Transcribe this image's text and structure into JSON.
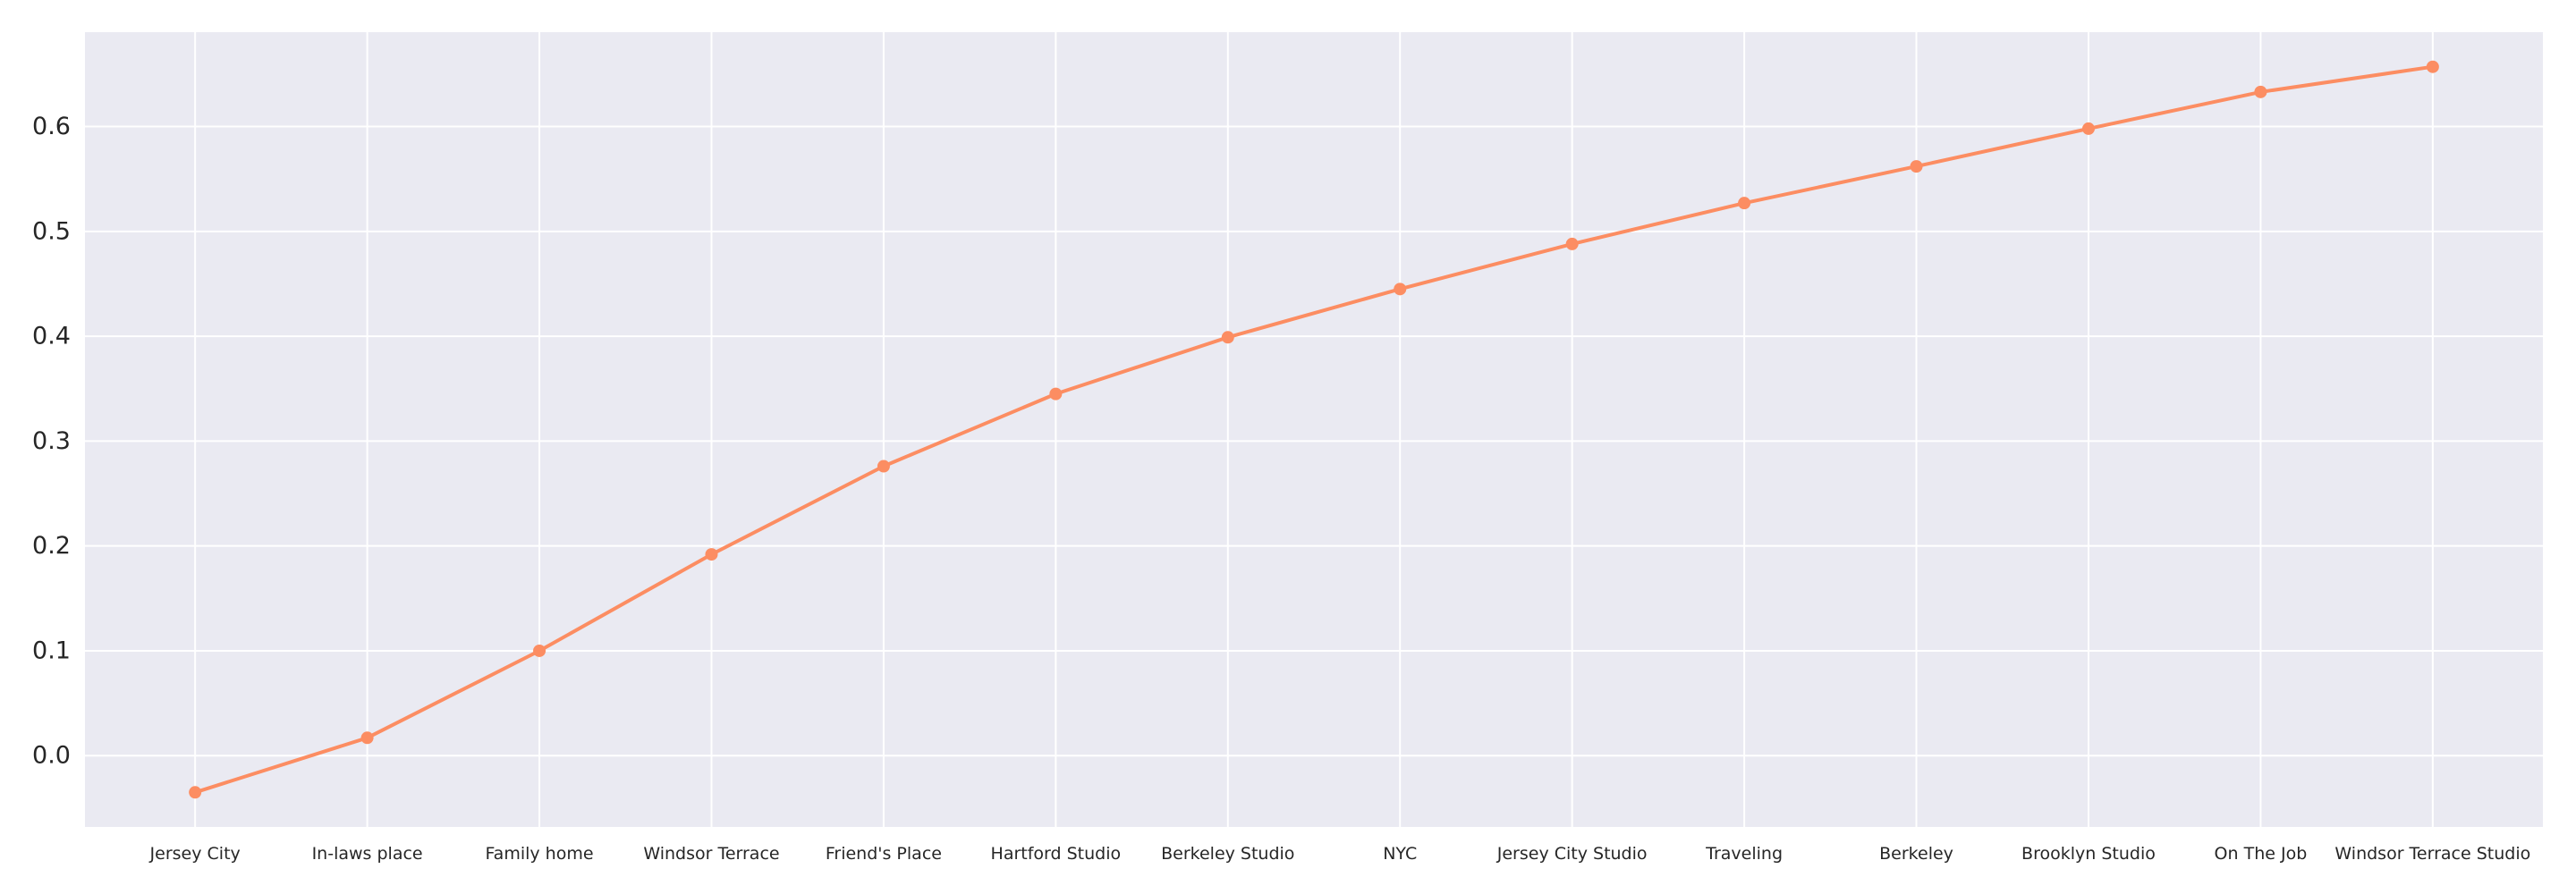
{
  "chart_data": {
    "type": "line",
    "title": "",
    "xlabel": "",
    "ylabel": "",
    "categories": [
      "Jersey City",
      "In-laws place",
      "Family home",
      "Windsor Terrace",
      "Friend's Place",
      "Hartford Studio",
      "Berkeley Studio",
      "NYC",
      "Jersey City Studio",
      "Traveling",
      "Berkeley",
      "Brooklyn Studio",
      "On The Job",
      "Windsor Terrace Studio"
    ],
    "series": [
      {
        "values": [
          -0.035,
          0.017,
          0.1,
          0.192,
          0.276,
          0.345,
          0.399,
          0.445,
          0.488,
          0.527,
          0.562,
          0.598,
          0.633,
          0.657
        ],
        "color": "#fc8d62"
      }
    ],
    "ylim": [
      -0.068,
      0.69
    ],
    "yticks": [
      0.0,
      0.1,
      0.2,
      0.3,
      0.4,
      0.5,
      0.6
    ],
    "ytick_labels": [
      "0.0",
      "0.1",
      "0.2",
      "0.3",
      "0.4",
      "0.5",
      "0.6"
    ],
    "grid": true,
    "legend": "none",
    "colors": {
      "plot_background": "#eaeaf2",
      "grid": "#ffffff",
      "text": "#262626"
    }
  }
}
